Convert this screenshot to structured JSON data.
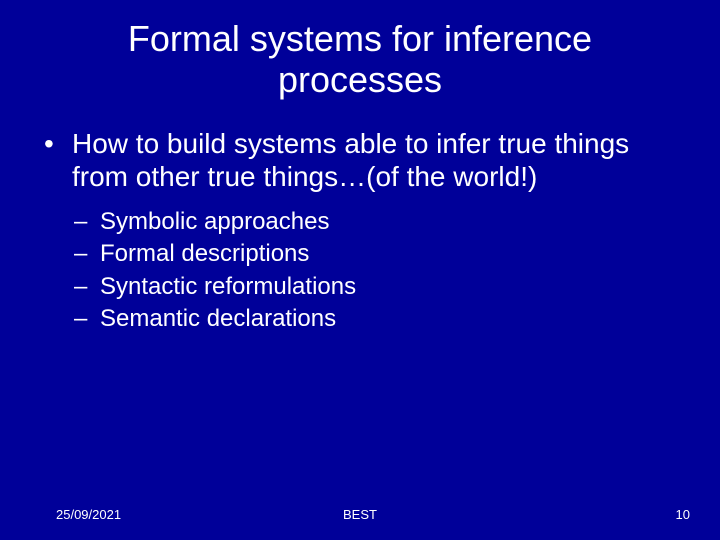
{
  "colors": {
    "background": "#000099",
    "text": "#ffffff"
  },
  "typography": {
    "family": "Arial",
    "title_fontsize": 36,
    "level1_fontsize": 28,
    "level2_fontsize": 24,
    "footer_fontsize": 13
  },
  "title": "Formal systems for inference processes",
  "bullets": {
    "level1": "How to build systems able to infer true things from other true things…(of the world!)",
    "level2": [
      "Symbolic approaches",
      "Formal descriptions",
      "Syntactic reformulations",
      "Semantic declarations"
    ]
  },
  "footer": {
    "date": "25/09/2021",
    "center": "BEST",
    "slide_number": "10"
  }
}
